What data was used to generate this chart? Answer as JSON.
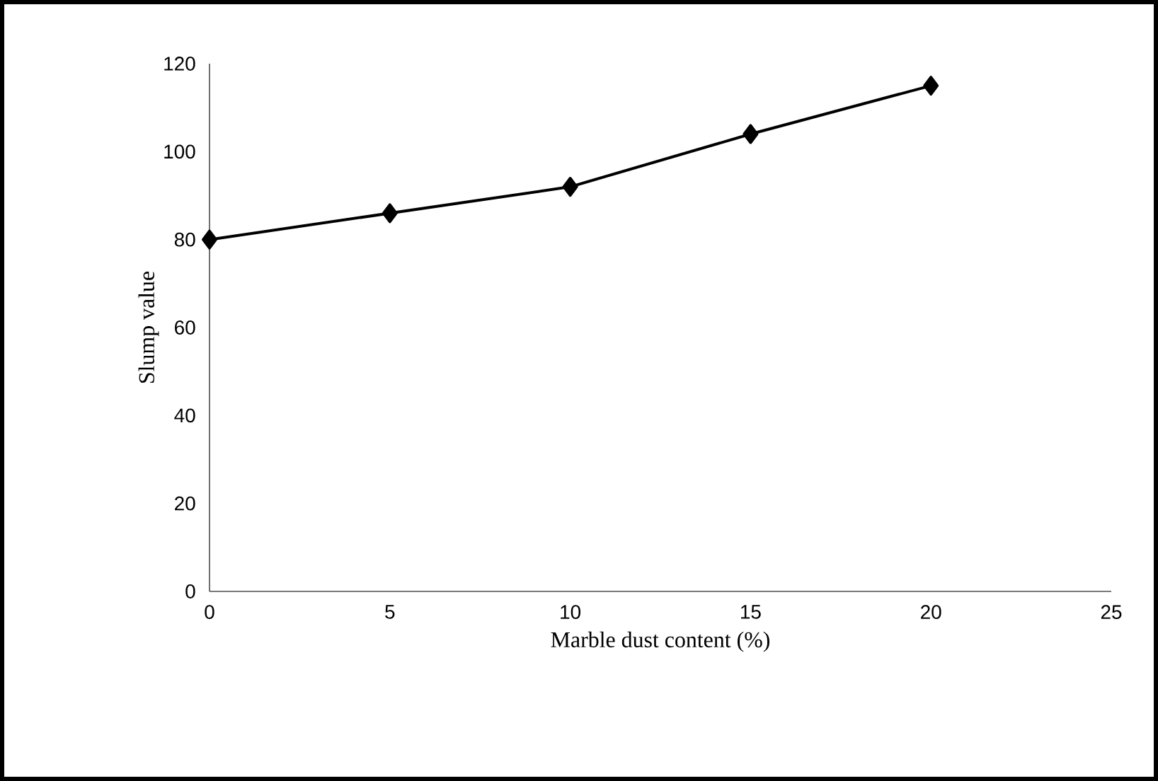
{
  "chart_data": {
    "type": "line",
    "xlabel": "Marble dust content (%)",
    "ylabel": "Slump value",
    "x": [
      0,
      5,
      10,
      15,
      20
    ],
    "values": [
      80,
      86,
      92,
      104,
      115
    ],
    "color": "#000000",
    "marker": "diamond",
    "line_style": "solid",
    "xlim": [
      0,
      25
    ],
    "xticks": [
      0,
      5,
      10,
      15,
      20,
      25
    ],
    "ylim": [
      0,
      120
    ],
    "yticks": [
      0,
      20,
      40,
      60,
      80,
      100,
      120
    ]
  }
}
